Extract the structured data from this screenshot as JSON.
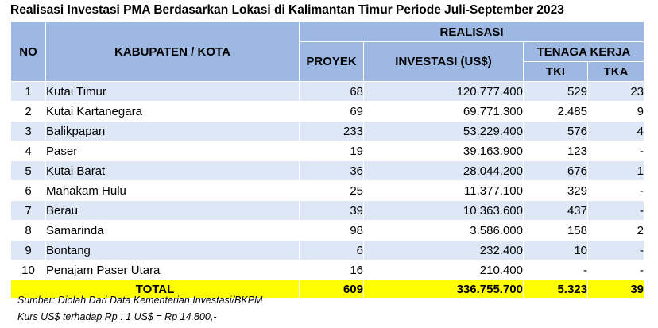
{
  "title": "Realisasi Investasi PMA Berdasarkan Lokasi di Kalimantan Timur Periode Juli-September  2023",
  "header": {
    "no": "NO",
    "kabupaten": "KABUPATEN / KOTA",
    "realisasi": "REALISASI",
    "proyek": "PROYEK",
    "investasi": "INVESTASI (US$)",
    "tenaga_kerja": "TENAGA KERJA",
    "tki": "TKI",
    "tka": "TKA"
  },
  "rows": [
    {
      "no": "1",
      "kabupaten": "Kutai Timur",
      "proyek": "68",
      "investasi": "120.777.400",
      "tki": "529",
      "tka": "23"
    },
    {
      "no": "2",
      "kabupaten": "Kutai Kartanegara",
      "proyek": "69",
      "investasi": "69.771.300",
      "tki": "2.485",
      "tka": "9"
    },
    {
      "no": "3",
      "kabupaten": "Balikpapan",
      "proyek": "233",
      "investasi": "53.229.400",
      "tki": "576",
      "tka": "4"
    },
    {
      "no": "4",
      "kabupaten": "Paser",
      "proyek": "19",
      "investasi": "39.163.900",
      "tki": "123",
      "tka": "-"
    },
    {
      "no": "5",
      "kabupaten": "Kutai Barat",
      "proyek": "36",
      "investasi": "28.044.200",
      "tki": "676",
      "tka": "1"
    },
    {
      "no": "6",
      "kabupaten": "Mahakam Hulu",
      "proyek": "25",
      "investasi": "11.377.100",
      "tki": "329",
      "tka": "-"
    },
    {
      "no": "7",
      "kabupaten": "Berau",
      "proyek": "39",
      "investasi": "10.363.600",
      "tki": "437",
      "tka": "-"
    },
    {
      "no": "8",
      "kabupaten": "Samarinda",
      "proyek": "98",
      "investasi": "3.586.000",
      "tki": "158",
      "tka": "2"
    },
    {
      "no": "9",
      "kabupaten": "Bontang",
      "proyek": "6",
      "investasi": "232.400",
      "tki": "10",
      "tka": "-"
    },
    {
      "no": "10",
      "kabupaten": "Penajam Paser Utara",
      "proyek": "16",
      "investasi": "210.400",
      "tki": "-",
      "tka": "-"
    }
  ],
  "total": {
    "label": "TOTAL",
    "proyek": "609",
    "investasi": "336.755.700",
    "tki": "5.323",
    "tka": "39"
  },
  "notes": {
    "source": "Sumber: Diolah Dari Data Kementerian Investasi/BKPM",
    "rate": "Kurs US$ terhadap Rp : 1 US$ = Rp 14.800,-"
  }
}
